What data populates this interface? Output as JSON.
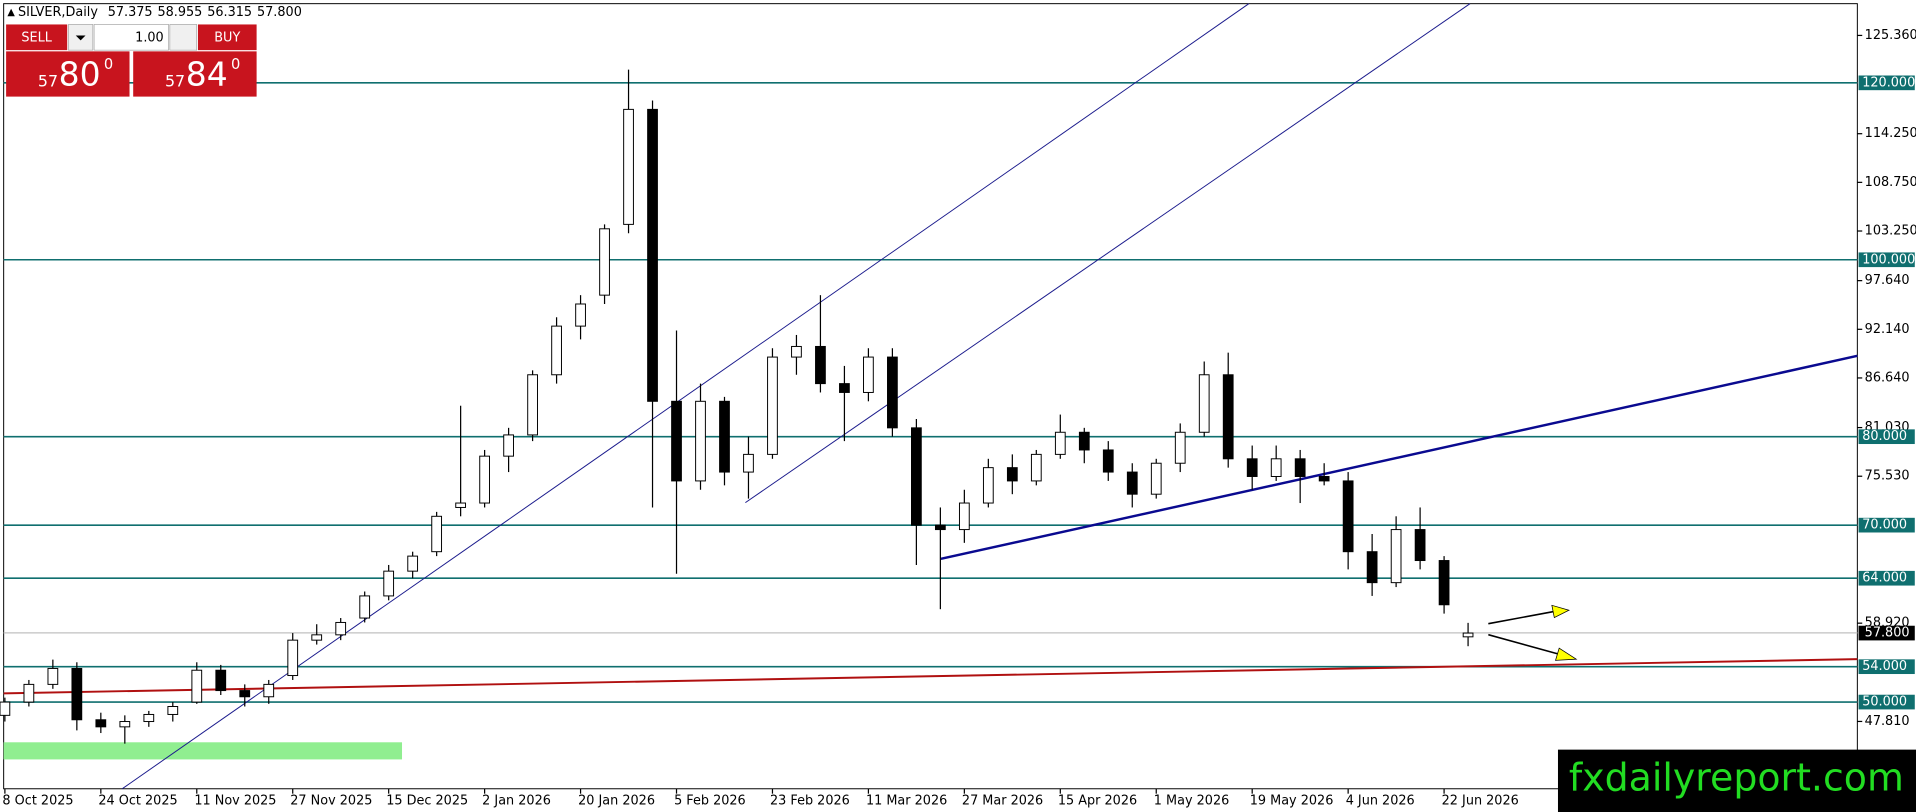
{
  "chart_data": {
    "type": "candlestick",
    "title": "SILVER,Daily",
    "ohlc_labels": [
      "57.375",
      "58.955",
      "56.315",
      "57.800"
    ],
    "categories": [
      "8 Oct 2025",
      null,
      null,
      null,
      "24 Oct 2025",
      null,
      null,
      null,
      "11 Nov 2025",
      null,
      null,
      null,
      "27 Nov 2025",
      null,
      null,
      null,
      "15 Dec 2025",
      null,
      null,
      null,
      "2 Jan 2026",
      null,
      null,
      null,
      "20 Jan 2026",
      null,
      null,
      null,
      "5 Feb 2026",
      null,
      null,
      null,
      "23 Feb 2026",
      null,
      null,
      null,
      "11 Mar 2026",
      null,
      null,
      null,
      "27 Mar 2026",
      null,
      null,
      null,
      "15 Apr 2026",
      null,
      null,
      null,
      "1 May 2026",
      null,
      null,
      null,
      "19 May 2026",
      null,
      null,
      null,
      "4 Jun 2026",
      null,
      null,
      null,
      "22 Jun 2026",
      null
    ],
    "open": [
      48.5,
      50,
      52,
      53.8,
      48,
      47.2,
      47.8,
      48.6,
      50,
      53.6,
      51.3,
      50.6,
      53,
      57,
      57.6,
      59.5,
      62,
      64.8,
      67,
      72,
      72.5,
      77.8,
      80.2,
      87,
      92.5,
      96,
      104,
      117,
      84,
      75,
      84,
      76,
      78,
      89,
      90.2,
      86,
      85,
      89,
      81,
      70,
      69.5,
      72.5,
      76.5,
      75,
      78,
      80.5,
      78.5,
      76,
      73.5,
      77,
      80.5,
      87,
      77.5,
      75.5,
      77.5,
      75.5,
      75,
      67,
      63.5,
      69.5,
      66,
      57.375
    ],
    "high": [
      50.5,
      52.5,
      54.8,
      54.5,
      48.8,
      48.5,
      49,
      50,
      54.5,
      54.2,
      52,
      52.5,
      57.8,
      58.8,
      59.5,
      62.5,
      65.5,
      67,
      71.5,
      83.5,
      78.5,
      81,
      87.5,
      93.5,
      96,
      104,
      121.5,
      118,
      92,
      86,
      84.5,
      80,
      90,
      91.5,
      96,
      88,
      90,
      90,
      82,
      72,
      74,
      77.5,
      78,
      78.5,
      82.5,
      81,
      79.5,
      77,
      77.5,
      81.5,
      88.5,
      89.5,
      79,
      79,
      78.5,
      77,
      76,
      69,
      71,
      72,
      66.5,
      58.955
    ],
    "low": [
      47.8,
      49.5,
      51.5,
      46.8,
      46.5,
      45.3,
      47.2,
      47.8,
      49.8,
      50.8,
      49.5,
      49.8,
      52.5,
      56.5,
      57,
      59,
      61.5,
      64,
      66.5,
      71,
      72,
      76,
      79.5,
      86,
      91,
      95,
      103,
      72,
      64.5,
      74,
      74.5,
      73,
      77.5,
      87,
      85,
      79.5,
      84,
      80,
      65.5,
      60.5,
      68,
      72,
      73.5,
      74.5,
      77.5,
      77,
      75,
      72,
      73,
      76,
      80,
      76.5,
      74,
      75,
      72.5,
      74.5,
      65,
      62,
      63,
      65,
      60,
      56.315
    ],
    "close": [
      50,
      52,
      53.8,
      48,
      47.2,
      47.8,
      48.6,
      49.5,
      53.6,
      51.3,
      50.6,
      52,
      57,
      57.6,
      59,
      62,
      64.8,
      66.5,
      71,
      72.5,
      77.8,
      80.2,
      87,
      92.5,
      95,
      103.5,
      117,
      84,
      75,
      84,
      76,
      78,
      89,
      90.2,
      86,
      85,
      89,
      81,
      70,
      69.5,
      72.5,
      76.5,
      75,
      78,
      80.5,
      78.5,
      76,
      73.5,
      77,
      80.5,
      87,
      77.5,
      75.5,
      77.5,
      75.5,
      75,
      67,
      63.5,
      69.5,
      66,
      61,
      57.8
    ],
    "ylim": [
      40.2,
      128.95
    ],
    "yticks": [
      {
        "value": 125.36,
        "label": "125.360"
      },
      {
        "value": 114.25,
        "label": "114.250"
      },
      {
        "value": 108.75,
        "label": "108.750"
      },
      {
        "value": 103.25,
        "label": "103.250"
      },
      {
        "value": 97.64,
        "label": "97.640"
      },
      {
        "value": 92.14,
        "label": "92.140"
      },
      {
        "value": 86.64,
        "label": "86.640"
      },
      {
        "value": 81.03,
        "label": "81.030"
      },
      {
        "value": 75.53,
        "label": "75.530"
      },
      {
        "value": 58.92,
        "label": "58.920"
      },
      {
        "value": 47.81,
        "label": "47.810"
      }
    ],
    "levels": [
      {
        "value": 120,
        "label": "120.000"
      },
      {
        "value": 100,
        "label": "100.000"
      },
      {
        "value": 80,
        "label": "80.000"
      },
      {
        "value": 70,
        "label": "70.000"
      },
      {
        "value": 64,
        "label": "64.000"
      },
      {
        "value": 54,
        "label": "54.000"
      },
      {
        "value": 50,
        "label": "50.000"
      }
    ],
    "level_color": "#0f6f6f"
  },
  "trade_panel": {
    "sell": "SELL",
    "buy": "BUY",
    "lot": "1.00",
    "bid": {
      "big": "57",
      "main": "80",
      "sup": "0"
    },
    "ask": {
      "big": "57",
      "main": "84",
      "sup": "0"
    }
  },
  "watermark": "fxdailyreport.com"
}
